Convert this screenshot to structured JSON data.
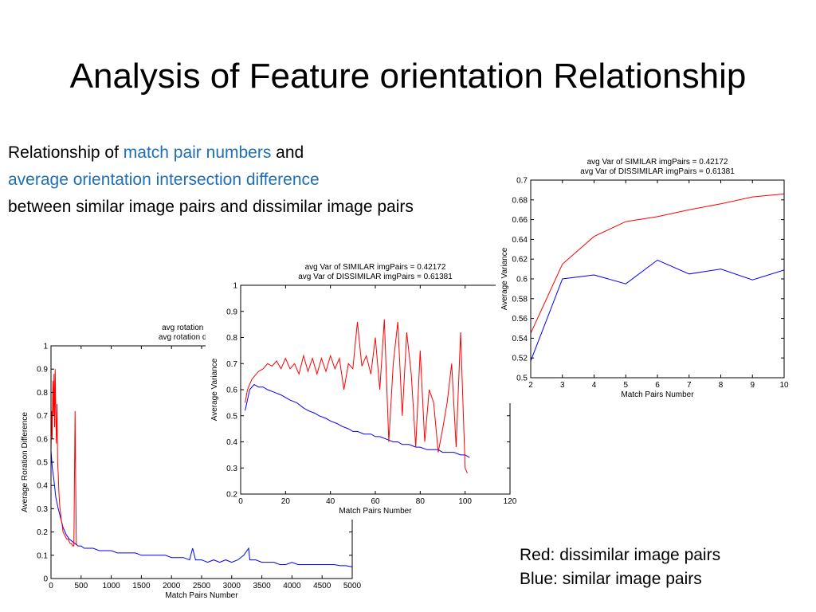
{
  "slide": {
    "title": "Analysis of Feature orientation Relationship",
    "desc": {
      "line1_prefix": "Relationship of ",
      "line1_blue": "match pair numbers",
      "line1_suffix": " and",
      "line2_blue": "average orientation intersection difference",
      "line3": "between similar image pairs and dissimilar image pairs"
    },
    "legend_note": {
      "red": "Red: dissimilar image pairs",
      "blue": "Blue: similar image pairs"
    },
    "colors": {
      "red": "#ff0000",
      "blue": "#0000ff",
      "accent_text": "#1f6fb7"
    }
  },
  "chart_data": [
    {
      "id": "chart1",
      "type": "line",
      "title_lines": [
        "avg rotation diff of SIM",
        "avg rotation diff of DISSI"
      ],
      "xlabel": "Match Pairs Number",
      "ylabel": "Average Roration Difference",
      "xlim": [
        0,
        5000
      ],
      "ylim": [
        0,
        1
      ],
      "xticks": [
        0,
        500,
        1000,
        1500,
        2000,
        2500,
        3000,
        3500,
        4000,
        4500,
        5000
      ],
      "yticks": [
        0,
        0.1,
        0.2,
        0.3,
        0.4,
        0.5,
        0.6,
        0.7,
        0.8,
        0.9,
        1
      ],
      "series": [
        {
          "color": "#0000ff",
          "x": [
            0,
            20,
            50,
            80,
            120,
            160,
            200,
            250,
            300,
            350,
            400,
            450,
            500,
            550,
            600,
            700,
            800,
            900,
            1000,
            1100,
            1200,
            1300,
            1400,
            1500,
            1600,
            1700,
            1800,
            1900,
            2000,
            2100,
            2200,
            2300,
            2350,
            2400,
            2500,
            2600,
            2700,
            2800,
            2900,
            3000,
            3100,
            3200,
            3280,
            3300,
            3400,
            3500,
            3600,
            3700,
            3800,
            3900,
            4000,
            4100,
            4200,
            4300,
            4400,
            4500,
            4600,
            4700,
            4800,
            4900,
            5000
          ],
          "y": [
            0.55,
            0.48,
            0.42,
            0.35,
            0.3,
            0.26,
            0.22,
            0.19,
            0.17,
            0.16,
            0.15,
            0.14,
            0.14,
            0.13,
            0.13,
            0.13,
            0.12,
            0.12,
            0.12,
            0.11,
            0.11,
            0.11,
            0.11,
            0.1,
            0.1,
            0.1,
            0.1,
            0.1,
            0.09,
            0.09,
            0.09,
            0.08,
            0.13,
            0.08,
            0.08,
            0.07,
            0.08,
            0.07,
            0.08,
            0.07,
            0.08,
            0.1,
            0.13,
            0.08,
            0.08,
            0.07,
            0.07,
            0.07,
            0.06,
            0.06,
            0.07,
            0.06,
            0.06,
            0.06,
            0.06,
            0.06,
            0.06,
            0.06,
            0.055,
            0.055,
            0.05
          ]
        },
        {
          "color": "#ff0000",
          "x": [
            0,
            10,
            20,
            30,
            40,
            50,
            60,
            70,
            80,
            90,
            100,
            110,
            120,
            130,
            140,
            150,
            160,
            170,
            180,
            190,
            200,
            220,
            240,
            260,
            280,
            300,
            320,
            340,
            360,
            380,
            390,
            400,
            410,
            420,
            440
          ],
          "y": [
            0.55,
            0.72,
            0.6,
            0.85,
            0.7,
            0.88,
            0.65,
            0.9,
            0.72,
            0.58,
            0.75,
            0.5,
            0.45,
            0.38,
            0.33,
            0.3,
            0.28,
            0.25,
            0.24,
            0.22,
            0.2,
            0.19,
            0.18,
            0.17,
            0.17,
            0.16,
            0.15,
            0.15,
            0.14,
            0.14,
            0.45,
            0.72,
            0.4,
            0.15,
            0.14
          ]
        }
      ]
    },
    {
      "id": "chart2",
      "type": "line",
      "title_lines": [
        "avg Var of SIMILAR imgPairs = 0.42172",
        "avg Var of DISSIMILAR imgPairs = 0.61381"
      ],
      "xlabel": "Match Pairs Number",
      "ylabel": "Average Variance",
      "xlim": [
        0,
        120
      ],
      "ylim": [
        0.2,
        1
      ],
      "xticks": [
        0,
        20,
        40,
        60,
        80,
        100,
        120
      ],
      "yticks": [
        0.2,
        0.3,
        0.4,
        0.5,
        0.6,
        0.7,
        0.8,
        0.9,
        1
      ],
      "series": [
        {
          "color": "#0000ff",
          "x": [
            2,
            4,
            6,
            8,
            10,
            12,
            15,
            18,
            20,
            22,
            25,
            28,
            30,
            33,
            35,
            38,
            40,
            43,
            45,
            48,
            50,
            52,
            55,
            58,
            60,
            62,
            65,
            68,
            70,
            72,
            75,
            78,
            80,
            83,
            85,
            88,
            90,
            93,
            95,
            98,
            100,
            102
          ],
          "y": [
            0.52,
            0.6,
            0.62,
            0.61,
            0.61,
            0.6,
            0.59,
            0.58,
            0.57,
            0.56,
            0.55,
            0.53,
            0.52,
            0.51,
            0.5,
            0.49,
            0.48,
            0.47,
            0.46,
            0.45,
            0.44,
            0.44,
            0.43,
            0.43,
            0.42,
            0.42,
            0.41,
            0.4,
            0.4,
            0.39,
            0.39,
            0.38,
            0.38,
            0.37,
            0.37,
            0.37,
            0.36,
            0.36,
            0.36,
            0.35,
            0.35,
            0.34
          ]
        },
        {
          "color": "#ff0000",
          "x": [
            2,
            3,
            5,
            8,
            10,
            12,
            14,
            16,
            18,
            20,
            22,
            24,
            26,
            28,
            30,
            32,
            34,
            36,
            38,
            40,
            42,
            44,
            46,
            48,
            50,
            52,
            54,
            56,
            58,
            60,
            62,
            64,
            66,
            68,
            70,
            72,
            74,
            76,
            78,
            80,
            82,
            84,
            86,
            88,
            90,
            92,
            94,
            96,
            98,
            100,
            101
          ],
          "y": [
            0.55,
            0.6,
            0.64,
            0.67,
            0.68,
            0.7,
            0.69,
            0.71,
            0.68,
            0.72,
            0.68,
            0.7,
            0.66,
            0.73,
            0.67,
            0.72,
            0.66,
            0.72,
            0.67,
            0.73,
            0.68,
            0.72,
            0.6,
            0.7,
            0.68,
            0.86,
            0.69,
            0.73,
            0.66,
            0.8,
            0.6,
            0.87,
            0.4,
            0.7,
            0.86,
            0.5,
            0.82,
            0.66,
            0.38,
            0.75,
            0.4,
            0.6,
            0.55,
            0.36,
            0.45,
            0.55,
            0.7,
            0.38,
            0.82,
            0.3,
            0.28
          ]
        }
      ]
    },
    {
      "id": "chart3",
      "type": "line",
      "title_lines": [
        "avg Var of SIMILAR imgPairs = 0.42172",
        "avg Var of DISSIMILAR imgPairs = 0.61381"
      ],
      "xlabel": "Match Pairs Number",
      "ylabel": "Average Variance",
      "xlim": [
        2,
        10
      ],
      "ylim": [
        0.5,
        0.7
      ],
      "xticks": [
        2,
        3,
        4,
        5,
        6,
        7,
        8,
        9,
        10
      ],
      "yticks": [
        0.5,
        0.52,
        0.54,
        0.56,
        0.58,
        0.6,
        0.62,
        0.64,
        0.66,
        0.68,
        0.7
      ],
      "series": [
        {
          "color": "#0000ff",
          "x": [
            2,
            3,
            4,
            5,
            6,
            7,
            8,
            9,
            10
          ],
          "y": [
            0.517,
            0.6,
            0.604,
            0.595,
            0.619,
            0.605,
            0.61,
            0.599,
            0.609
          ]
        },
        {
          "color": "#ff0000",
          "x": [
            2,
            3,
            4,
            5,
            6,
            7,
            8,
            9,
            10
          ],
          "y": [
            0.545,
            0.615,
            0.643,
            0.658,
            0.663,
            0.67,
            0.676,
            0.683,
            0.686
          ]
        }
      ]
    }
  ]
}
